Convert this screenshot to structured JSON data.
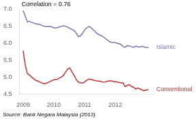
{
  "chart_data": {
    "type": "line",
    "annotation": "Correlation = 0.76",
    "source": "Source: Bank Negara Malaysia (2013)",
    "x": [
      2009.0,
      2009.06915,
      2009.13831,
      2009.20746,
      2009.27661,
      2009.34576,
      2009.41492,
      2009.48407,
      2009.55322,
      2009.62237,
      2009.69153,
      2009.76068,
      2009.82983,
      2009.89898,
      2009.96814,
      2010.03729,
      2010.10644,
      2010.17559,
      2010.24475,
      2010.3139,
      2010.38305,
      2010.4522,
      2010.52136,
      2010.59051,
      2010.65966,
      2010.72881,
      2010.79797,
      2010.86712,
      2010.93627,
      2011.00542,
      2011.07458,
      2011.14373,
      2011.21288,
      2011.28203,
      2011.35119,
      2011.42034,
      2011.48949,
      2011.55864,
      2011.6278,
      2011.69695,
      2011.7661,
      2011.83525,
      2011.90441,
      2011.97356,
      2012.04271,
      2012.11186,
      2012.18102,
      2012.25017,
      2012.31932,
      2012.38847,
      2012.45763,
      2012.52678,
      2012.59593,
      2012.66508,
      2012.73424,
      2012.80339,
      2012.87254,
      2012.94169,
      2013.01085,
      2013.08
    ],
    "series": [
      {
        "name": "Islamic",
        "color": "#7777aa",
        "values": [
          6.97,
          6.8,
          6.63,
          6.65,
          6.62,
          6.6,
          6.57,
          6.57,
          6.55,
          6.53,
          6.5,
          6.5,
          6.49,
          6.5,
          6.47,
          6.45,
          6.46,
          6.48,
          6.5,
          6.52,
          6.5,
          6.48,
          6.44,
          6.41,
          6.38,
          6.3,
          6.2,
          6.22,
          6.3,
          6.4,
          6.46,
          6.5,
          6.46,
          6.4,
          6.34,
          6.28,
          6.25,
          6.22,
          6.18,
          6.13,
          6.08,
          6.04,
          6.02,
          6.03,
          6.01,
          5.99,
          5.97,
          5.91,
          5.88,
          5.93,
          5.92,
          5.9,
          5.88,
          5.91,
          5.9,
          5.89,
          5.91,
          5.89,
          5.88,
          5.88
        ]
      },
      {
        "name": "Conventional",
        "color": "#bb3333",
        "values": [
          5.78,
          5.35,
          5.1,
          5.06,
          5.0,
          4.95,
          4.9,
          4.88,
          4.85,
          4.82,
          4.8,
          4.82,
          4.85,
          4.88,
          4.91,
          4.93,
          4.93,
          4.97,
          5.0,
          5.05,
          5.15,
          5.24,
          5.27,
          5.15,
          5.05,
          4.93,
          4.85,
          4.83,
          4.82,
          4.86,
          4.91,
          4.94,
          4.93,
          4.91,
          4.89,
          4.88,
          4.88,
          4.86,
          4.85,
          4.86,
          4.88,
          4.89,
          4.88,
          4.86,
          4.86,
          4.84,
          4.83,
          4.83,
          4.72,
          4.75,
          4.78,
          4.72,
          4.7,
          4.65,
          4.68,
          4.65,
          4.62,
          4.6,
          4.62,
          4.63
        ]
      }
    ],
    "xlim": [
      2008.88,
      2013.25
    ],
    "xticks": [
      2009,
      2010,
      2011,
      2012
    ],
    "ylim": [
      4.5,
      7.0
    ],
    "yticks": [
      4.5,
      {
        "value": 5,
        "label": "5.0"
      },
      5.5,
      {
        "value": 6,
        "label": "6.0"
      },
      6.5,
      {
        "value": 7,
        "label": "7.0"
      }
    ],
    "grid": false
  }
}
